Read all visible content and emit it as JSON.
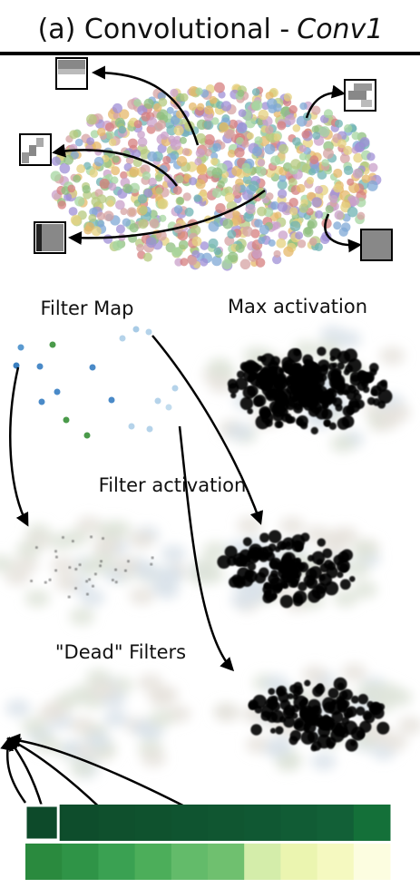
{
  "title": {
    "text": "(a) Convolutional -",
    "model": "Conv1"
  },
  "labels": {
    "filter_map": "Filter Map",
    "max_activation": "Max activation",
    "filter_activation": "Filter activation",
    "dead_filters": "\"Dead\" Filters"
  }
}
